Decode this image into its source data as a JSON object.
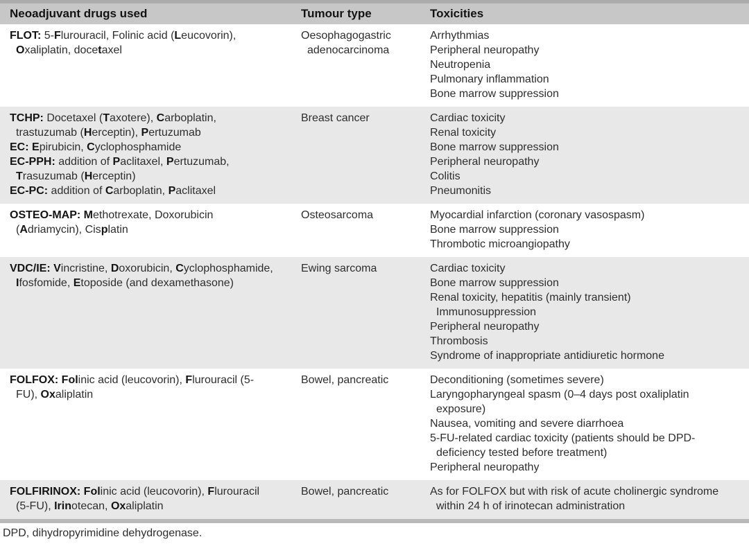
{
  "table": {
    "columns": [
      "Neoadjuvant drugs used",
      "Tumour type",
      "Toxicities"
    ],
    "rows": [
      {
        "shaded": false,
        "drugs": [
          [
            {
              "b": 1,
              "t": "FLOT:"
            },
            {
              "t": " 5-"
            },
            {
              "b": 1,
              "t": "F"
            },
            {
              "t": "lurouracil, Folinic acid ("
            },
            {
              "b": 1,
              "t": "L"
            },
            {
              "t": "eucovorin), "
            },
            {
              "b": 1,
              "t": "O"
            },
            {
              "t": "xaliplatin, doce"
            },
            {
              "b": 1,
              "t": "t"
            },
            {
              "t": "axel"
            }
          ]
        ],
        "tumour": "Oesophagogastric adenocarcinoma",
        "toxicities": [
          "Arrhythmias",
          "Peripheral neuropathy",
          "Neutropenia",
          "Pulmonary inflammation",
          "Bone marrow suppression"
        ]
      },
      {
        "shaded": true,
        "drugs": [
          [
            {
              "b": 1,
              "t": "TCHP:"
            },
            {
              "t": " Docetaxel ("
            },
            {
              "b": 1,
              "t": "T"
            },
            {
              "t": "axotere), "
            },
            {
              "b": 1,
              "t": "C"
            },
            {
              "t": "arboplatin, trastuzumab ("
            },
            {
              "b": 1,
              "t": "H"
            },
            {
              "t": "erceptin), "
            },
            {
              "b": 1,
              "t": "P"
            },
            {
              "t": "ertuzumab"
            }
          ],
          [
            {
              "b": 1,
              "t": "EC:"
            },
            {
              "t": " "
            },
            {
              "b": 1,
              "t": "E"
            },
            {
              "t": "pirubicin, "
            },
            {
              "b": 1,
              "t": "C"
            },
            {
              "t": "yclophosphamide"
            }
          ],
          [
            {
              "b": 1,
              "t": "EC-PPH:"
            },
            {
              "t": " addition of "
            },
            {
              "b": 1,
              "t": "P"
            },
            {
              "t": "aclitaxel, "
            },
            {
              "b": 1,
              "t": "P"
            },
            {
              "t": "ertuzumab, "
            },
            {
              "b": 1,
              "t": "T"
            },
            {
              "t": "rasuzumab ("
            },
            {
              "b": 1,
              "t": "H"
            },
            {
              "t": "erceptin)"
            }
          ],
          [
            {
              "b": 1,
              "t": "EC-PC:"
            },
            {
              "t": " addition of "
            },
            {
              "b": 1,
              "t": "C"
            },
            {
              "t": "arboplatin, "
            },
            {
              "b": 1,
              "t": "P"
            },
            {
              "t": "aclitaxel"
            }
          ]
        ],
        "tumour": "Breast cancer",
        "toxicities": [
          "Cardiac toxicity",
          "Renal toxicity",
          "Bone marrow suppression",
          "Peripheral neuropathy",
          "Colitis",
          "Pneumonitis"
        ]
      },
      {
        "shaded": false,
        "drugs": [
          [
            {
              "b": 1,
              "t": "OSTEO-MAP:"
            },
            {
              "t": " "
            },
            {
              "b": 1,
              "t": "M"
            },
            {
              "t": "ethotrexate, Doxorubicin ("
            },
            {
              "b": 1,
              "t": "A"
            },
            {
              "t": "driamycin), Cis"
            },
            {
              "b": 1,
              "t": "p"
            },
            {
              "t": "latin"
            }
          ]
        ],
        "tumour": "Osteosarcoma",
        "toxicities": [
          "Myocardial infarction (coronary vasospasm)",
          "Bone marrow suppression",
          "Thrombotic microangiopathy"
        ]
      },
      {
        "shaded": true,
        "drugs": [
          [
            {
              "b": 1,
              "t": "VDC/IE:"
            },
            {
              "t": " "
            },
            {
              "b": 1,
              "t": "V"
            },
            {
              "t": "incristine, "
            },
            {
              "b": 1,
              "t": "D"
            },
            {
              "t": "oxorubicin, "
            },
            {
              "b": 1,
              "t": "C"
            },
            {
              "t": "yclophosphamide, "
            },
            {
              "b": 1,
              "t": "I"
            },
            {
              "t": "fosfomide, "
            },
            {
              "b": 1,
              "t": "E"
            },
            {
              "t": "toposide (and dexamethasone)"
            }
          ]
        ],
        "tumour": "Ewing sarcoma",
        "toxicities": [
          "Cardiac toxicity",
          "Bone marrow suppression",
          "Renal toxicity, hepatitis (mainly transient) Immunosuppression",
          "Peripheral neuropathy",
          "Thrombosis",
          "Syndrome of inappropriate antidiuretic hormone"
        ]
      },
      {
        "shaded": false,
        "drugs": [
          [
            {
              "b": 1,
              "t": "FOLFOX:"
            },
            {
              "t": " "
            },
            {
              "b": 1,
              "t": "Fol"
            },
            {
              "t": "inic acid (leucovorin), "
            },
            {
              "b": 1,
              "t": "F"
            },
            {
              "t": "lurouracil (5-FU), "
            },
            {
              "b": 1,
              "t": "Ox"
            },
            {
              "t": "aliplatin"
            }
          ]
        ],
        "tumour": "Bowel, pancreatic",
        "toxicities": [
          "Deconditioning (sometimes severe)",
          "Laryngopharyngeal spasm (0–4 days post oxaliplatin exposure)",
          "Nausea, vomiting and severe diarrhoea",
          "5-FU-related cardiac toxicity (patients should be DPD-deficiency tested before treatment)",
          "Peripheral neuropathy"
        ]
      },
      {
        "shaded": true,
        "drugs": [
          [
            {
              "b": 1,
              "t": "FOLFIRINOX:"
            },
            {
              "t": " "
            },
            {
              "b": 1,
              "t": "Fol"
            },
            {
              "t": "inic acid (leucovorin), "
            },
            {
              "b": 1,
              "t": "F"
            },
            {
              "t": "lurouracil (5-FU), "
            },
            {
              "b": 1,
              "t": "Irin"
            },
            {
              "t": "otecan, "
            },
            {
              "b": 1,
              "t": "Ox"
            },
            {
              "t": "aliplatin"
            }
          ]
        ],
        "tumour": "Bowel, pancreatic",
        "toxicities": [
          "As for FOLFOX but with risk of acute cholinergic syndrome within 24 h of irinotecan administration"
        ]
      }
    ],
    "footnote": "DPD, dihydropyrimidine dehydrogenase."
  },
  "colors": {
    "header_bg": "#c7c7c7",
    "shaded_row_bg": "#e8e8e8",
    "top_rule": "#ababab",
    "bottom_rule": "#b9b9b9",
    "text": "#2e2e2e"
  }
}
